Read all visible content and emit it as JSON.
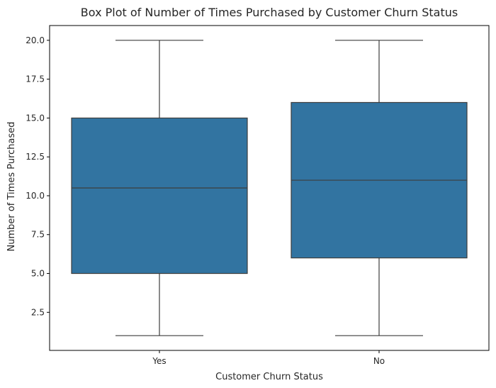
{
  "chart_data": {
    "type": "box",
    "title": "Box Plot of Number of Times Purchased by Customer Churn Status",
    "xlabel": "Customer Churn Status",
    "ylabel": "Number of Times Purchased",
    "categories": [
      "Yes",
      "No"
    ],
    "boxes": [
      {
        "category": "Yes",
        "min": 1,
        "q1": 5,
        "median": 10.5,
        "q3": 15,
        "max": 20
      },
      {
        "category": "No",
        "min": 1,
        "q1": 6,
        "median": 11,
        "q3": 16,
        "max": 20
      }
    ],
    "yticks": [
      "2.5",
      "5.0",
      "7.5",
      "10.0",
      "12.5",
      "15.0",
      "17.5",
      "20.0"
    ],
    "ylim": [
      0.05,
      20.95
    ],
    "grid": false,
    "colors": {
      "box_fill": "#3274a1",
      "line": "#3d3d3d",
      "axis": "#000000"
    }
  }
}
